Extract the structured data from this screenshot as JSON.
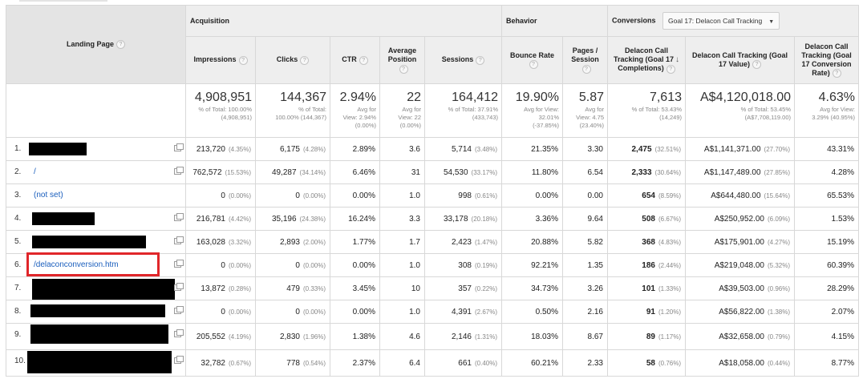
{
  "header": {
    "landing_page": "Landing Page",
    "acquisition": "Acquisition",
    "behavior": "Behavior",
    "conversions": "Conversions",
    "goal_select": "Goal 17: Delacon Call Tracking",
    "columns": {
      "impressions": "Impressions",
      "clicks": "Clicks",
      "ctr": "CTR",
      "avg_pos_1": "Average",
      "avg_pos_2": "Position",
      "sessions": "Sessions",
      "bounce_rate": "Bounce Rate",
      "pages_1": "Pages /",
      "pages_2": "Session",
      "comp_1": "Delacon Call",
      "comp_2": "Tracking (Goal 17",
      "comp_3": "Completions)",
      "value_1": "Delacon Call Tracking (Goal",
      "value_2": "17 Value)",
      "rate_1": "Delacon Call",
      "rate_2": "Tracking (Goal",
      "rate_3": "17 Conversion",
      "rate_4": "Rate)"
    }
  },
  "totals": {
    "impressions": {
      "value": "4,908,951",
      "sub1": "% of Total: 100.00%",
      "sub2": "(4,908,951)",
      "sub3": ""
    },
    "clicks": {
      "value": "144,367",
      "sub1": "% of Total:",
      "sub2": "100.00% (144,367)",
      "sub3": ""
    },
    "ctr": {
      "value": "2.94%",
      "sub1": "Avg for",
      "sub2": "View: 2.94%",
      "sub3": "(0.00%)"
    },
    "avg_position": {
      "value": "22",
      "sub1": "Avg for",
      "sub2": "View: 22",
      "sub3": "(0.00%)"
    },
    "sessions": {
      "value": "164,412",
      "sub1": "% of Total: 37.91%",
      "sub2": "(433,743)",
      "sub3": ""
    },
    "bounce_rate": {
      "value": "19.90%",
      "sub1": "Avg for View:",
      "sub2": "32.01%",
      "sub3": "(-37.85%)"
    },
    "pages_session": {
      "value": "5.87",
      "sub1": "Avg for",
      "sub2": "View: 4.75",
      "sub3": "(23.40%)"
    },
    "completions": {
      "value": "7,613",
      "sub1": "% of Total: 53.43%",
      "sub2": "(14,249)",
      "sub3": ""
    },
    "goal_value": {
      "value": "A$4,120,018.00",
      "sub1": "% of Total: 53.45%",
      "sub2": "(A$7,708,119.00)",
      "sub3": ""
    },
    "conv_rate": {
      "value": "4.63%",
      "sub1": "Avg for View:",
      "sub2": "3.29% (40.95%)",
      "sub3": ""
    }
  },
  "rows": [
    {
      "num": "1.",
      "page": "",
      "impressions": "213,720",
      "impressions_pct": "(4.35%)",
      "clicks": "6,175",
      "clicks_pct": "(4.28%)",
      "ctr": "2.89%",
      "avg_position": "3.6",
      "sessions": "5,714",
      "sessions_pct": "(3.48%)",
      "bounce_rate": "21.35%",
      "pages_session": "3.30",
      "completions": "2,475",
      "completions_pct": "(32.51%)",
      "goal_value": "A$1,141,371.00",
      "goal_value_pct": "(27.70%)",
      "conv_rate": "43.31%"
    },
    {
      "num": "2.",
      "page": "/",
      "impressions": "762,572",
      "impressions_pct": "(15.53%)",
      "clicks": "49,287",
      "clicks_pct": "(34.14%)",
      "ctr": "6.46%",
      "avg_position": "31",
      "sessions": "54,530",
      "sessions_pct": "(33.17%)",
      "bounce_rate": "11.80%",
      "pages_session": "6.54",
      "completions": "2,333",
      "completions_pct": "(30.64%)",
      "goal_value": "A$1,147,489.00",
      "goal_value_pct": "(27.85%)",
      "conv_rate": "4.28%"
    },
    {
      "num": "3.",
      "page": "(not set)",
      "impressions": "0",
      "impressions_pct": "(0.00%)",
      "clicks": "0",
      "clicks_pct": "(0.00%)",
      "ctr": "0.00%",
      "avg_position": "1.0",
      "sessions": "998",
      "sessions_pct": "(0.61%)",
      "bounce_rate": "0.00%",
      "pages_session": "0.00",
      "completions": "654",
      "completions_pct": "(8.59%)",
      "goal_value": "A$644,480.00",
      "goal_value_pct": "(15.64%)",
      "conv_rate": "65.53%"
    },
    {
      "num": "4.",
      "page": "",
      "impressions": "216,781",
      "impressions_pct": "(4.42%)",
      "clicks": "35,196",
      "clicks_pct": "(24.38%)",
      "ctr": "16.24%",
      "avg_position": "3.3",
      "sessions": "33,178",
      "sessions_pct": "(20.18%)",
      "bounce_rate": "3.36%",
      "pages_session": "9.64",
      "completions": "508",
      "completions_pct": "(6.67%)",
      "goal_value": "A$250,952.00",
      "goal_value_pct": "(6.09%)",
      "conv_rate": "1.53%"
    },
    {
      "num": "5.",
      "page": "",
      "impressions": "163,028",
      "impressions_pct": "(3.32%)",
      "clicks": "2,893",
      "clicks_pct": "(2.00%)",
      "ctr": "1.77%",
      "avg_position": "1.7",
      "sessions": "2,423",
      "sessions_pct": "(1.47%)",
      "bounce_rate": "20.88%",
      "pages_session": "5.82",
      "completions": "368",
      "completions_pct": "(4.83%)",
      "goal_value": "A$175,901.00",
      "goal_value_pct": "(4.27%)",
      "conv_rate": "15.19%"
    },
    {
      "num": "6.",
      "page": "/delaconconversion.htm",
      "impressions": "0",
      "impressions_pct": "(0.00%)",
      "clicks": "0",
      "clicks_pct": "(0.00%)",
      "ctr": "0.00%",
      "avg_position": "1.0",
      "sessions": "308",
      "sessions_pct": "(0.19%)",
      "bounce_rate": "92.21%",
      "pages_session": "1.35",
      "completions": "186",
      "completions_pct": "(2.44%)",
      "goal_value": "A$219,048.00",
      "goal_value_pct": "(5.32%)",
      "conv_rate": "60.39%"
    },
    {
      "num": "7.",
      "page": "",
      "impressions": "13,872",
      "impressions_pct": "(0.28%)",
      "clicks": "479",
      "clicks_pct": "(0.33%)",
      "ctr": "3.45%",
      "avg_position": "10",
      "sessions": "357",
      "sessions_pct": "(0.22%)",
      "bounce_rate": "34.73%",
      "pages_session": "3.26",
      "completions": "101",
      "completions_pct": "(1.33%)",
      "goal_value": "A$39,503.00",
      "goal_value_pct": "(0.96%)",
      "conv_rate": "28.29%"
    },
    {
      "num": "8.",
      "page": "",
      "impressions": "0",
      "impressions_pct": "(0.00%)",
      "clicks": "0",
      "clicks_pct": "(0.00%)",
      "ctr": "0.00%",
      "avg_position": "1.0",
      "sessions": "4,391",
      "sessions_pct": "(2.67%)",
      "bounce_rate": "0.50%",
      "pages_session": "2.16",
      "completions": "91",
      "completions_pct": "(1.20%)",
      "goal_value": "A$56,822.00",
      "goal_value_pct": "(1.38%)",
      "conv_rate": "2.07%"
    },
    {
      "num": "9.",
      "page": "",
      "impressions": "205,552",
      "impressions_pct": "(4.19%)",
      "clicks": "2,830",
      "clicks_pct": "(1.96%)",
      "ctr": "1.38%",
      "avg_position": "4.6",
      "sessions": "2,146",
      "sessions_pct": "(1.31%)",
      "bounce_rate": "18.03%",
      "pages_session": "8.67",
      "completions": "89",
      "completions_pct": "(1.17%)",
      "goal_value": "A$32,658.00",
      "goal_value_pct": "(0.79%)",
      "conv_rate": "4.15%"
    },
    {
      "num": "10.",
      "page": "",
      "impressions": "32,782",
      "impressions_pct": "(0.67%)",
      "clicks": "778",
      "clicks_pct": "(0.54%)",
      "ctr": "2.37%",
      "avg_position": "6.4",
      "sessions": "661",
      "sessions_pct": "(0.40%)",
      "bounce_rate": "60.21%",
      "pages_session": "2.33",
      "completions": "58",
      "completions_pct": "(0.76%)",
      "goal_value": "A$18,058.00",
      "goal_value_pct": "(0.44%)",
      "conv_rate": "8.77%"
    }
  ],
  "icons": {
    "help": "question-circle-icon",
    "sort": "sort-descending-icon",
    "copy": "copy-icon",
    "dropdown": "caret-down-icon"
  },
  "colors": {
    "link": "#1a5ebd",
    "highlight": "#e0262a",
    "header_bg": "#eeeeee"
  }
}
